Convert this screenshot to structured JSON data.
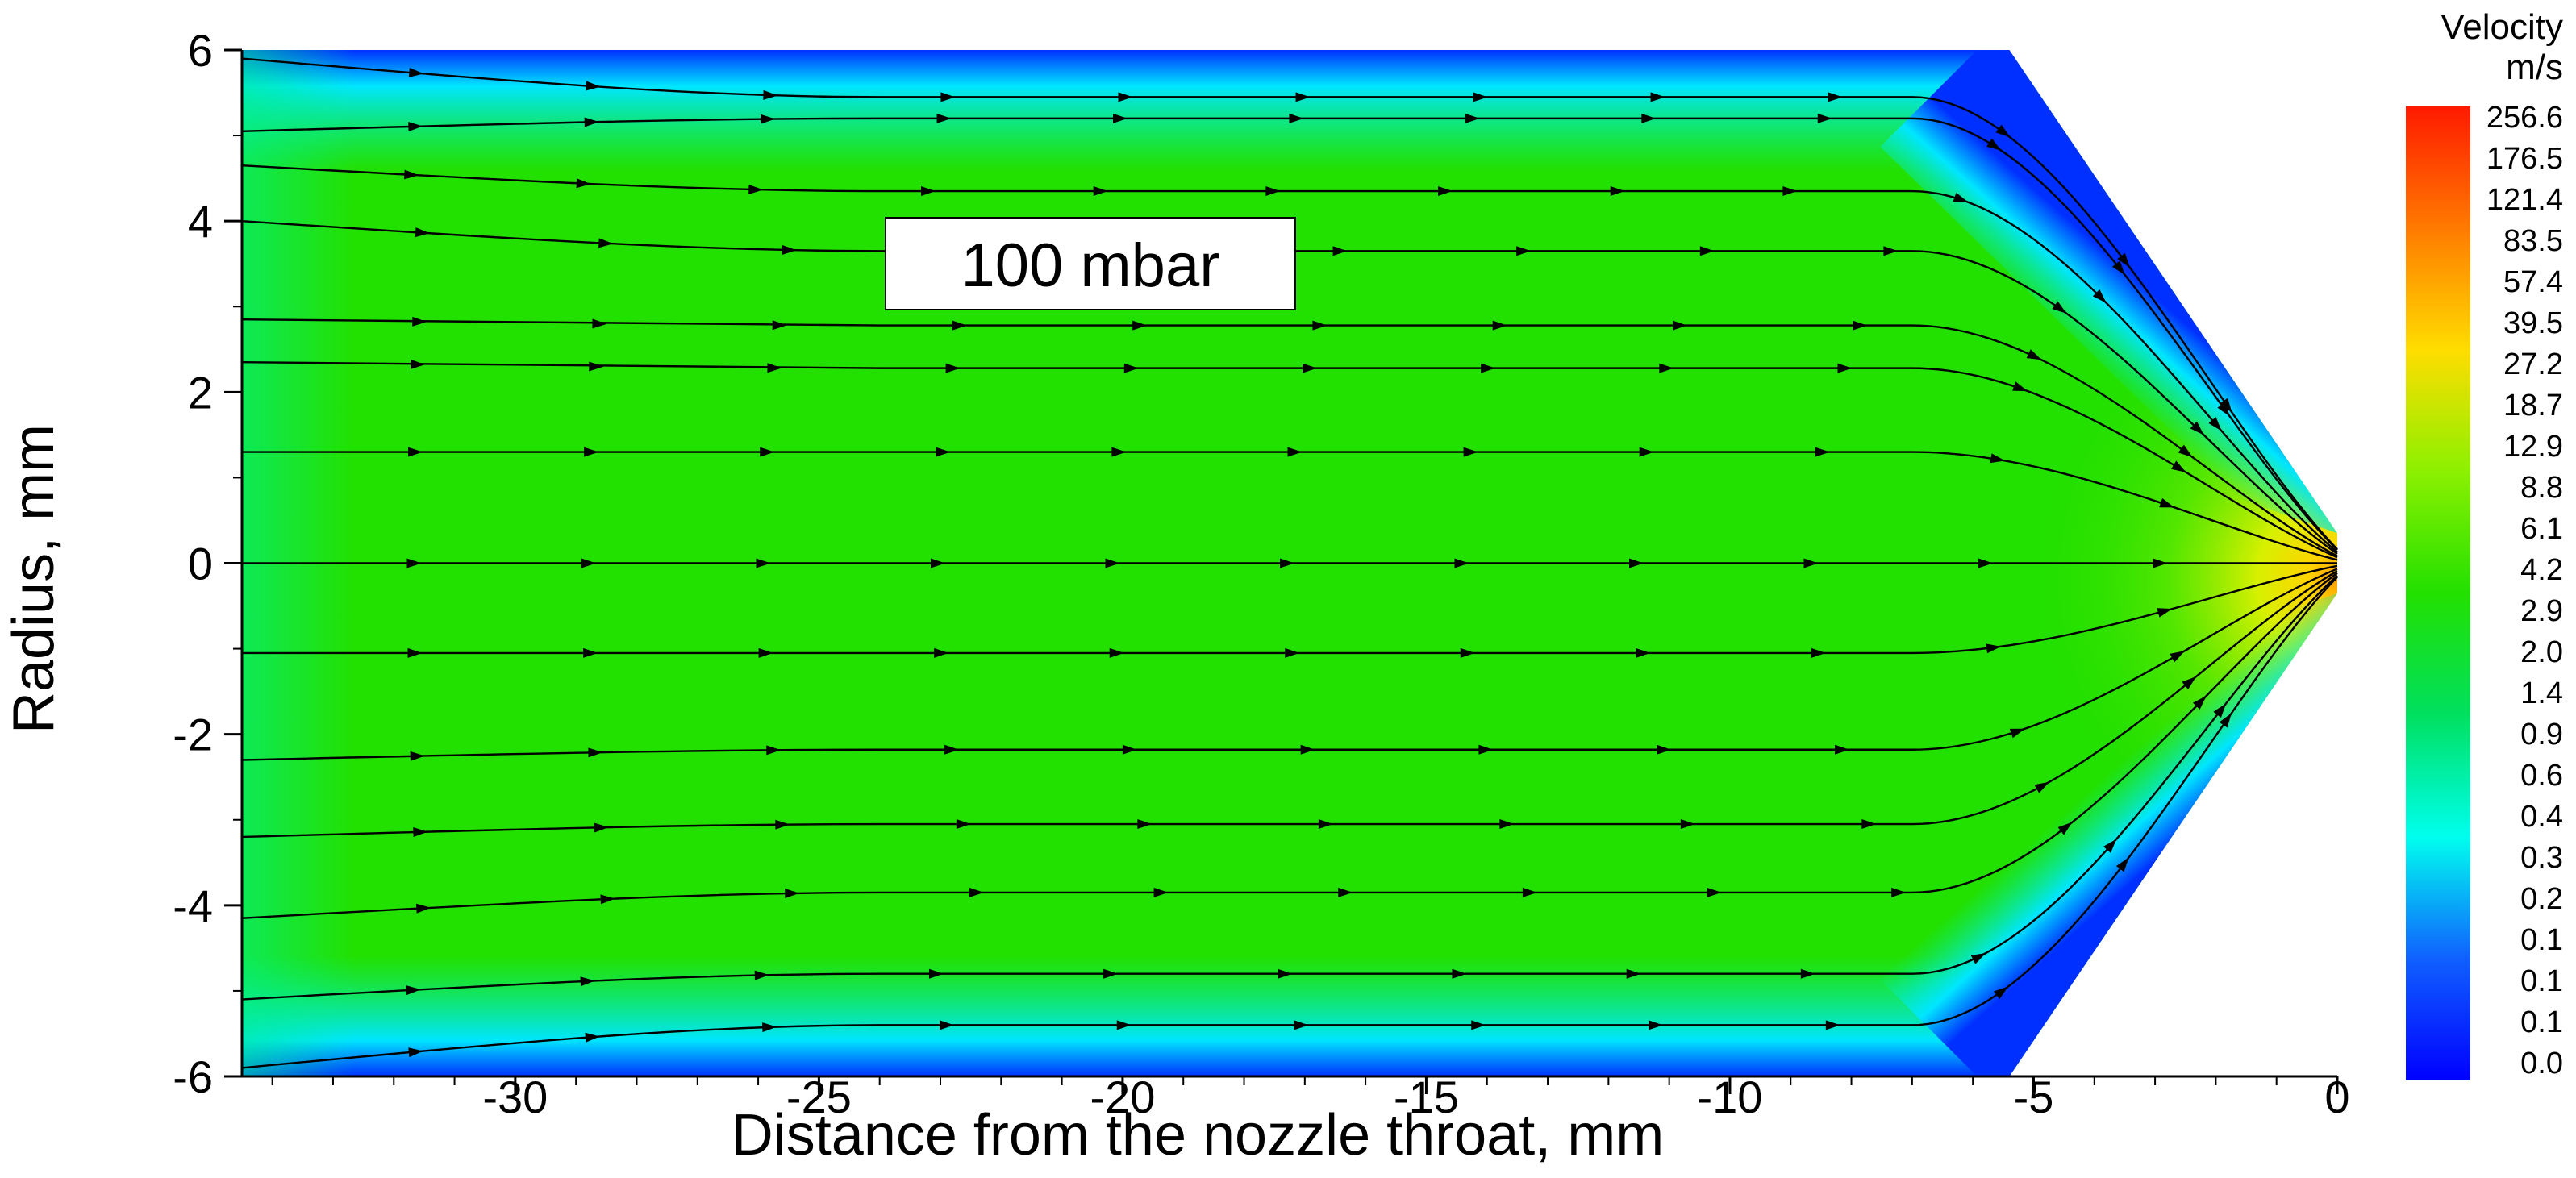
{
  "chart_data": {
    "type": "heatmap",
    "subtype": "velocity contour with streamlines",
    "xlabel": "Distance from the nozzle throat, mm",
    "ylabel": "Radius, mm",
    "xlim": [
      -34.5,
      0
    ],
    "ylim": [
      -6,
      6
    ],
    "x_ticks": [
      "-30",
      "-25",
      "-20",
      "-15",
      "-10",
      "-5",
      "0"
    ],
    "x_tick_values": [
      -30,
      -25,
      -20,
      -15,
      -10,
      -5,
      0
    ],
    "y_ticks": [
      "6",
      "4",
      "2",
      "0",
      "-2",
      "-4",
      "-6"
    ],
    "y_tick_values": [
      6,
      4,
      2,
      0,
      -2,
      -4,
      -6
    ],
    "annotation": "100 mbar",
    "geometry": {
      "cone_start_x": -5.4,
      "throat_half_radius": 0.35
    },
    "colorbar": {
      "title": "Velocity",
      "unit": "m/s",
      "labels": [
        "256.6",
        "176.5",
        "121.4",
        "83.5",
        "57.4",
        "39.5",
        "27.2",
        "18.7",
        "12.9",
        "8.8",
        "6.1",
        "4.2",
        "2.9",
        "2.0",
        "1.4",
        "0.9",
        "0.6",
        "0.4",
        "0.3",
        "0.2",
        "0.1",
        "0.1",
        "0.1",
        "0.0"
      ],
      "colors": [
        "#ff1a00",
        "#ff7a00",
        "#ffdd00",
        "#8cf000",
        "#22e000",
        "#00e060",
        "#00ffee",
        "#1060ff",
        "#0000ff"
      ]
    },
    "streamline_y_inlet": [
      5.9,
      5.05,
      4.65,
      4.0,
      2.85,
      2.35,
      1.3,
      0,
      -1.05,
      -2.3,
      -3.2,
      -4.15,
      -5.1,
      -5.9
    ],
    "streamline_y_plateau": [
      5.45,
      5.2,
      4.35,
      3.65,
      2.78,
      2.28,
      1.3,
      0,
      -1.05,
      -2.18,
      -3.05,
      -3.85,
      -4.8,
      -5.4
    ]
  }
}
